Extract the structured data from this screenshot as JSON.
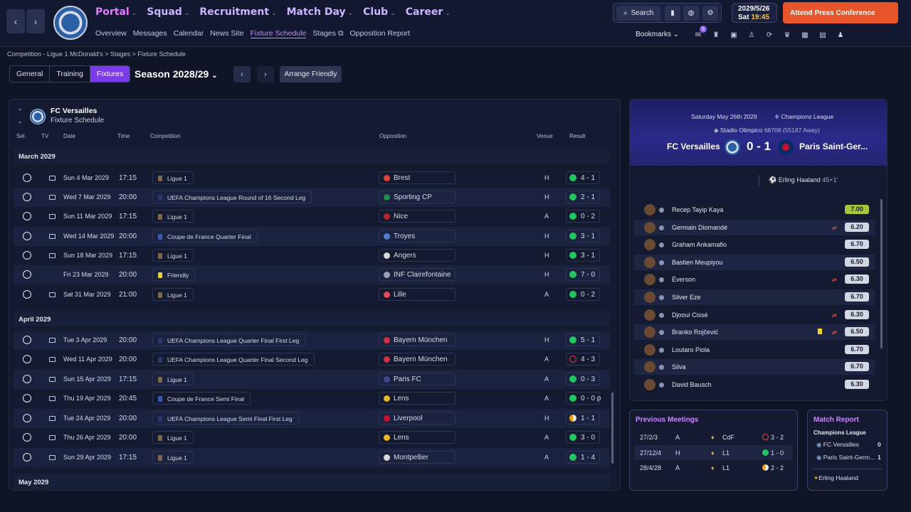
{
  "nav": {
    "main": [
      "Portal",
      "Squad",
      "Recruitment",
      "Match Day",
      "Club",
      "Career"
    ],
    "sub": [
      "Overview",
      "Messages",
      "Calendar",
      "News Site",
      "Fixture Schedule",
      "Stages",
      "Opposition Report"
    ],
    "search": "Search",
    "date": "2029/5/26",
    "day": "Sat",
    "time": "19:45",
    "press": "Attend Press Conference",
    "bookmarks": "Bookmarks",
    "badge": "5"
  },
  "crumb": "Competition - Ligue 1 McDonald's  >  Stages  >  Fixture Schedule",
  "tabs": [
    "General",
    "Training",
    "Fixtures"
  ],
  "season": "Season 2028/29",
  "friendly": "Arrange Friendly",
  "panel": {
    "club": "FC Versailles",
    "sub": "Fixture Schedule",
    "headers": {
      "sel": "Sel.",
      "tv": "TV",
      "date": "Date",
      "time": "Time",
      "comp": "Competition",
      "opp": "Opposition",
      "venue": "Venue",
      "result": "Result"
    }
  },
  "months": [
    "March 2029",
    "April 2029",
    "May 2029"
  ],
  "fixtures": [
    {
      "date": "Sun 4 Mar 2029",
      "time": "17:15",
      "comp": "Ligue 1",
      "opp": "Brest",
      "venue": "H",
      "result": "4 - 1",
      "rc": "#22c55e",
      "cc": "#7b6a4a",
      "oc": "#e3403a",
      "tv": true
    },
    {
      "date": "Wed 7 Mar 2029",
      "time": "20:00",
      "comp": "UEFA Champions League Round of 16  Second Leg",
      "opp": "Sporting CP",
      "venue": "H",
      "result": "2 - 1",
      "rc": "#22c55e",
      "cc": "#2b3770",
      "oc": "#1f8a4c",
      "tv": true
    },
    {
      "date": "Sun 11 Mar 2029",
      "time": "17:15",
      "comp": "Ligue 1",
      "opp": "Nice",
      "venue": "A",
      "result": "0 - 2",
      "rc": "#22c55e",
      "cc": "#7b6a4a",
      "oc": "#b8242b",
      "tv": true
    },
    {
      "date": "Wed 14 Mar 2029",
      "time": "20:00",
      "comp": "Coupe de France Quarter Final",
      "opp": "Troyes",
      "venue": "H",
      "result": "3 - 1",
      "rc": "#22c55e",
      "cc": "#3a57b5",
      "oc": "#4a7fd0",
      "tv": true
    },
    {
      "date": "Sun 18 Mar 2029",
      "time": "17:15",
      "comp": "Ligue 1",
      "opp": "Angers",
      "venue": "H",
      "result": "3 - 1",
      "rc": "#22c55e",
      "cc": "#7b6a4a",
      "oc": "#d8d8d8",
      "tv": true
    },
    {
      "date": "Fri 23 Mar 2029",
      "time": "20:00",
      "comp": "Friendly",
      "opp": "INF Clairefontaine",
      "venue": "H",
      "result": "7 - 0",
      "rc": "#22c55e",
      "cc": "#e6d23a",
      "oc": "#9aa0b8",
      "tv": false
    },
    {
      "date": "Sat 31 Mar 2029",
      "time": "21:00",
      "comp": "Ligue 1",
      "opp": "Lille",
      "venue": "A",
      "result": "0 - 2",
      "rc": "#22c55e",
      "cc": "#7b6a4a",
      "oc": "#e34b57",
      "tv": true
    },
    {
      "date": "Tue 3 Apr 2029",
      "time": "20:00",
      "comp": "UEFA Champions League Quarter Final First Leg",
      "opp": "Bayern München",
      "venue": "H",
      "result": "5 - 1",
      "rc": "#22c55e",
      "cc": "#2b3770",
      "oc": "#d52f45",
      "tv": true
    },
    {
      "date": "Wed 11 Apr 2029",
      "time": "20:00",
      "comp": "UEFA Champions League Quarter Final Second Leg",
      "opp": "Bayern München",
      "venue": "A",
      "result": "4 - 3",
      "rc": "#ef4444",
      "cc": "#2b3770",
      "oc": "#d52f45",
      "tv": true
    },
    {
      "date": "Sun 15 Apr 2029",
      "time": "17:15",
      "comp": "Ligue 1",
      "opp": "Paris FC",
      "venue": "A",
      "result": "0 - 3",
      "rc": "#22c55e",
      "cc": "#7b6a4a",
      "oc": "#3b4a8a",
      "tv": true
    },
    {
      "date": "Thu 19 Apr 2029",
      "time": "20:45",
      "comp": "Coupe de France Semi Final",
      "opp": "Lens",
      "venue": "A",
      "result": "0 - 0 p",
      "rc": "#22c55e",
      "cc": "#3a57b5",
      "oc": "#e8b526",
      "tv": true
    },
    {
      "date": "Tue 24 Apr 2029",
      "time": "20:00",
      "comp": "UEFA Champions League Semi Final First Leg",
      "opp": "Liverpool",
      "venue": "H",
      "result": "1 - 1",
      "rc": "#f59e0b",
      "cc": "#2b3770",
      "oc": "#c8102e",
      "tv": true
    },
    {
      "date": "Thu 26 Apr 2029",
      "time": "20:00",
      "comp": "Ligue 1",
      "opp": "Lens",
      "venue": "A",
      "result": "3 - 0",
      "rc": "#22c55e",
      "cc": "#7b6a4a",
      "oc": "#e8b526",
      "tv": true
    },
    {
      "date": "Sun 29 Apr 2029",
      "time": "17:15",
      "comp": "Ligue 1",
      "opp": "Montpellier",
      "venue": "A",
      "result": "1 - 4",
      "rc": "#22c55e",
      "cc": "#7b6a4a",
      "oc": "#d8d8d8",
      "tv": true
    }
  ],
  "match": {
    "date": "Saturday May 26th 2029",
    "comp": "Champions League",
    "stadium": "Stadio Olimpico",
    "att": "68708",
    "away_att": "(55187 Away)",
    "home": "FC Versailles",
    "score": "0 - 1",
    "away": "Paris Saint-Ger...",
    "scorer": "Erling Haaland",
    "minute": "45+1'"
  },
  "players": [
    {
      "name": "Recep Tayip Kaya",
      "rating": "7.00",
      "top": true,
      "sub": false,
      "yc": false
    },
    {
      "name": "Germain Diomandé",
      "rating": "6.20",
      "sub": true,
      "yc": false
    },
    {
      "name": "Graham Ankamafio",
      "rating": "6.70",
      "sub": false,
      "yc": false
    },
    {
      "name": "Bastien Meupiyou",
      "rating": "6.50",
      "sub": false,
      "yc": false
    },
    {
      "name": "Éverson",
      "rating": "6.30",
      "sub": true,
      "yc": false
    },
    {
      "name": "Silver Eze",
      "rating": "6.70",
      "sub": false,
      "yc": false
    },
    {
      "name": "Djooui Cissé",
      "rating": "6.30",
      "sub": true,
      "yc": false
    },
    {
      "name": "Branko Rojčević",
      "rating": "6.50",
      "sub": true,
      "yc": true
    },
    {
      "name": "Loutaro Piola",
      "rating": "6.70",
      "sub": false,
      "yc": false
    },
    {
      "name": "Silva",
      "rating": "6.70",
      "sub": false,
      "yc": false
    },
    {
      "name": "David Bausch",
      "rating": "6.30",
      "sub": false,
      "yc": false
    }
  ],
  "prev": {
    "title": "Previous Meetings",
    "rows": [
      {
        "d": "27/2/3",
        "v": "A",
        "c": "CdF",
        "r": "3 - 2",
        "rc": "#ef4444"
      },
      {
        "d": "27/12/4",
        "v": "H",
        "c": "L1",
        "r": "1 - 0",
        "rc": "#22c55e"
      },
      {
        "d": "28/4/28",
        "v": "A",
        "c": "L1",
        "r": "2 - 2",
        "rc": "#f59e0b"
      }
    ]
  },
  "report": {
    "title": "Match Report",
    "comp": "Champions League",
    "home": "FC Versailles",
    "hs": "0",
    "away": "Paris Saint-Germ...",
    "as": "1",
    "scorer": "Erling Haaland"
  }
}
